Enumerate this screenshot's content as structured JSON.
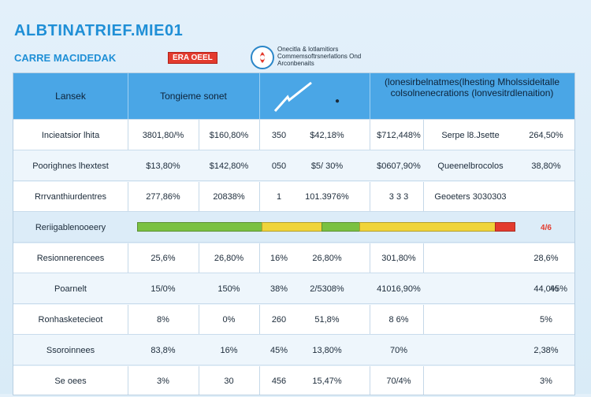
{
  "header": {
    "title": "ALBTINATRIEF.MIE01",
    "subtitle": "CARRE MACIDEDAK",
    "badge": "ERA OEEL",
    "logo_text": "Onecitla & lotlamitiors Commemsoftrsnerlatlons Ond Arconbenaits"
  },
  "table": {
    "columns": {
      "label": "Lansek",
      "mid": "Tongieme sonet",
      "right": "(lonesirbelnatmes(lhesting Mholssideitalle colsolnenecrations (lonvesitrdlenaition)"
    },
    "rows": [
      {
        "label": "Incieatsior lhita",
        "c1": "3801,80/%",
        "c2": "$160,80%",
        "c3": "350",
        "c4": "$42,18%",
        "c5": "$712,448%",
        "c6": "Serpe l8.Jsette",
        "c7": "264,50%"
      },
      {
        "label": "Poorighnes lhextest",
        "c1": "$13,80%",
        "c2": "$142,80%",
        "c3": "050",
        "c4": "$5/ 30%",
        "c5": "$0607,90%",
        "c6": "Queenelbrocolos",
        "c7": "38,80%"
      },
      {
        "label": "Rrrvanthiurdentres",
        "c1": "277,86%",
        "c2": "20838%",
        "c3": "1",
        "c4": "101.3976%",
        "c5": "3 3 3",
        "c6": "Geoeters 3030303",
        "c7": ""
      },
      {
        "label": "Reriigablenooeery",
        "c1": "",
        "c2": "",
        "c3": "",
        "c4": "",
        "c5": "",
        "c6": "",
        "c7": "4/6"
      },
      {
        "label": "Resionnerencees",
        "c1": "25,6%",
        "c2": "26,80%",
        "c3": "16%",
        "c4": "26,80%",
        "c5": "301,80%",
        "c6": "",
        "c7": "28,6%"
      },
      {
        "label": "Poarnelt",
        "c1": "15/0%",
        "c2": "150%",
        "c3": "38%",
        "c4": "2/5308%",
        "c5": "41016,90%",
        "c6": "",
        "c7": "44,0%"
      },
      {
        "label": "Ronhasketecieot",
        "c1": "8%",
        "c2": "0%",
        "c3": "260",
        "c4": "51,8%",
        "c5": "8 6%",
        "c6": "",
        "c7": "5%"
      },
      {
        "label": "Ssoroinnees",
        "c1": "83,8%",
        "c2": "16%",
        "c3": "45%",
        "c4": "13,80%",
        "c5": "70%",
        "c6": "",
        "c7": "2,38%"
      },
      {
        "label": "Se oees",
        "c1": "3%",
        "c2": "30",
        "c3": "456",
        "c4": "15,47%",
        "c5": "70/4%",
        "c6": "",
        "c7": "3%"
      }
    ],
    "extra_right": [
      "",
      "",
      "",
      "",
      "",
      "45%",
      "",
      "",
      ""
    ],
    "bar": {
      "segments": [
        {
          "color": "#7ac142",
          "fraction": 0.33
        },
        {
          "color": "#f0d43a",
          "fraction": 0.16
        },
        {
          "color": "#7ac142",
          "fraction": 0.1
        },
        {
          "color": "#f0d43a",
          "fraction": 0.36
        },
        {
          "color": "#e33b2e",
          "fraction": 0.05
        }
      ]
    }
  }
}
